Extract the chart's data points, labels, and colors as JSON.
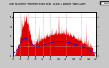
{
  "title": "Solar PV/Inverter Performance East Array - Actual & Average Power Output",
  "bg_color": "#c8c8c8",
  "plot_bg": "#ffffff",
  "grid_color": "#aaaaaa",
  "bar_color": "#dd0000",
  "avg_color": "#0000ff",
  "avg_color2": "#ff0000",
  "legend_actual_color": "#ff0000",
  "legend_avg_color": "#0000cc",
  "ylim": [
    0,
    4.5
  ],
  "yticks": [
    0,
    1,
    2,
    3,
    4
  ],
  "num_points": 600,
  "days": 23
}
